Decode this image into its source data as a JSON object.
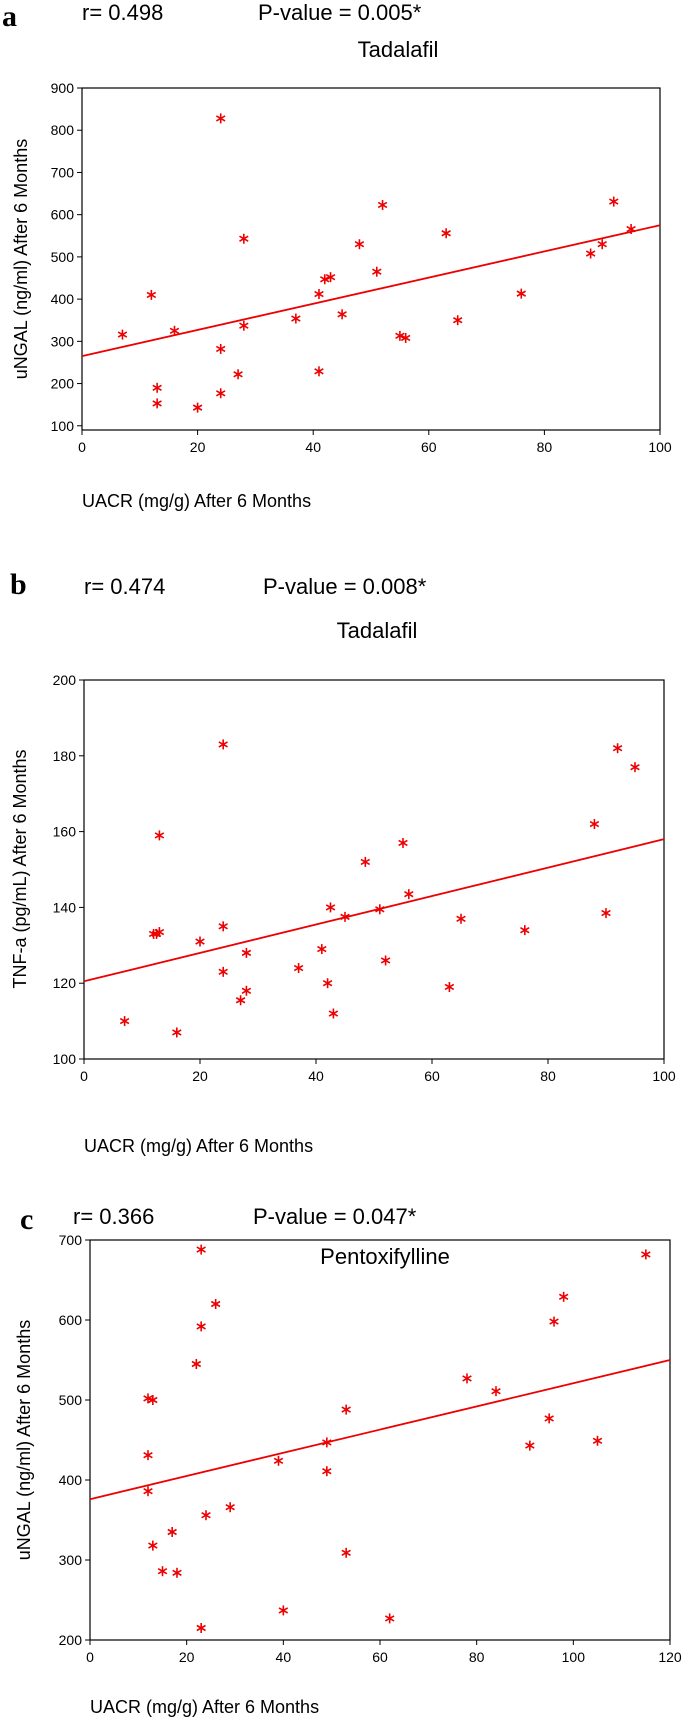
{
  "chart_data": [
    {
      "type": "scatter",
      "panel": "a",
      "r_text": "r= 0.498",
      "p_text": "P-value = 0.005*",
      "title": "Tadalafil",
      "xlabel": "UACR (mg/g)  After 6 Months",
      "ylabel": "uNGAL (ng/ml)  After 6 Months",
      "xlim": [
        0,
        100
      ],
      "ylim": [
        90,
        900
      ],
      "xticks": [
        0,
        20,
        40,
        60,
        80,
        100
      ],
      "yticks": [
        100,
        200,
        300,
        400,
        500,
        600,
        700,
        800,
        900
      ],
      "series": [
        {
          "name": "Tadalafil",
          "color": "#ee0000",
          "marker": "asterisk",
          "points": [
            [
              7,
              316
            ],
            [
              12,
              410
            ],
            [
              13,
              190
            ],
            [
              13,
              153
            ],
            [
              16,
              325
            ],
            [
              20,
              143
            ],
            [
              24,
              828
            ],
            [
              24,
              177
            ],
            [
              24,
              282
            ],
            [
              27,
              222
            ],
            [
              28,
              543
            ],
            [
              28,
              337
            ],
            [
              37,
              354
            ],
            [
              41,
              229
            ],
            [
              41,
              412
            ],
            [
              42,
              447
            ],
            [
              43,
              452
            ],
            [
              45,
              364
            ],
            [
              48,
              530
            ],
            [
              51,
              465
            ],
            [
              52,
              623
            ],
            [
              55,
              313
            ],
            [
              56,
              308
            ],
            [
              63,
              556
            ],
            [
              65,
              350
            ],
            [
              76,
              413
            ],
            [
              88,
              508
            ],
            [
              90,
              530
            ],
            [
              92,
              631
            ],
            [
              95,
              566
            ]
          ]
        }
      ],
      "fit_line": {
        "x": [
          0,
          100
        ],
        "y": [
          265,
          575
        ]
      }
    },
    {
      "type": "scatter",
      "panel": "b",
      "r_text": "r= 0.474",
      "p_text": "P-value = 0.008*",
      "title": "Tadalafil",
      "xlabel": "UACR (mg/g)  After 6 Months",
      "ylabel": "TNF-a (pg/mL) After 6 Months",
      "xlim": [
        0,
        100
      ],
      "ylim": [
        100,
        200
      ],
      "xticks": [
        0,
        20,
        40,
        60,
        80,
        100
      ],
      "yticks": [
        100,
        120,
        140,
        160,
        180,
        200
      ],
      "series": [
        {
          "name": "Tadalafil",
          "color": "#ee0000",
          "marker": "asterisk",
          "points": [
            [
              7,
              110
            ],
            [
              12,
              133
            ],
            [
              12.5,
              133
            ],
            [
              13,
              133.5
            ],
            [
              13,
              159
            ],
            [
              16,
              107
            ],
            [
              20,
              131
            ],
            [
              24,
              183
            ],
            [
              24,
              135
            ],
            [
              24,
              123
            ],
            [
              27,
              115.5
            ],
            [
              28,
              118
            ],
            [
              28,
              128
            ],
            [
              37,
              124
            ],
            [
              41,
              129
            ],
            [
              42,
              120
            ],
            [
              42.5,
              140
            ],
            [
              43,
              112
            ],
            [
              45,
              137.5
            ],
            [
              48.5,
              152
            ],
            [
              51,
              139.5
            ],
            [
              52,
              126
            ],
            [
              55,
              157
            ],
            [
              56,
              143.5
            ],
            [
              63,
              119
            ],
            [
              65,
              137
            ],
            [
              76,
              134
            ],
            [
              88,
              162
            ],
            [
              90,
              138.5
            ],
            [
              92,
              182
            ],
            [
              95,
              177
            ]
          ]
        }
      ],
      "fit_line": {
        "x": [
          0,
          100
        ],
        "y": [
          120.5,
          158
        ]
      }
    },
    {
      "type": "scatter",
      "panel": "c",
      "r_text": "r= 0.366",
      "p_text": "P-value = 0.047*",
      "title": "Pentoxifylline",
      "xlabel": "UACR (mg/g)  After 6 Months",
      "ylabel": "uNGAL (ng/ml)  After 6 Months",
      "xlim": [
        0,
        120
      ],
      "ylim": [
        200,
        700
      ],
      "xticks": [
        0,
        20,
        40,
        60,
        80,
        100,
        120
      ],
      "yticks": [
        200,
        300,
        400,
        500,
        600,
        700
      ],
      "series": [
        {
          "name": "Pentoxifylline",
          "color": "#ee0000",
          "marker": "asterisk",
          "points": [
            [
              12,
              502
            ],
            [
              13,
              500
            ],
            [
              12,
              431
            ],
            [
              12,
              386
            ],
            [
              13,
              318
            ],
            [
              15,
              286
            ],
            [
              17,
              335
            ],
            [
              18,
              284
            ],
            [
              22,
              545
            ],
            [
              23,
              592
            ],
            [
              23,
              688
            ],
            [
              23,
              215
            ],
            [
              24,
              356
            ],
            [
              26,
              620
            ],
            [
              29,
              366
            ],
            [
              39,
              424
            ],
            [
              40,
              237
            ],
            [
              49,
              447
            ],
            [
              49,
              411
            ],
            [
              53,
              488
            ],
            [
              53,
              309
            ],
            [
              62,
              227
            ],
            [
              78,
              527
            ],
            [
              84,
              511
            ],
            [
              91,
              443
            ],
            [
              95,
              477
            ],
            [
              96,
              598
            ],
            [
              98,
              629
            ],
            [
              105,
              449
            ],
            [
              115,
              682
            ]
          ]
        }
      ],
      "fit_line": {
        "x": [
          0,
          120
        ],
        "y": [
          376,
          550
        ]
      }
    }
  ]
}
